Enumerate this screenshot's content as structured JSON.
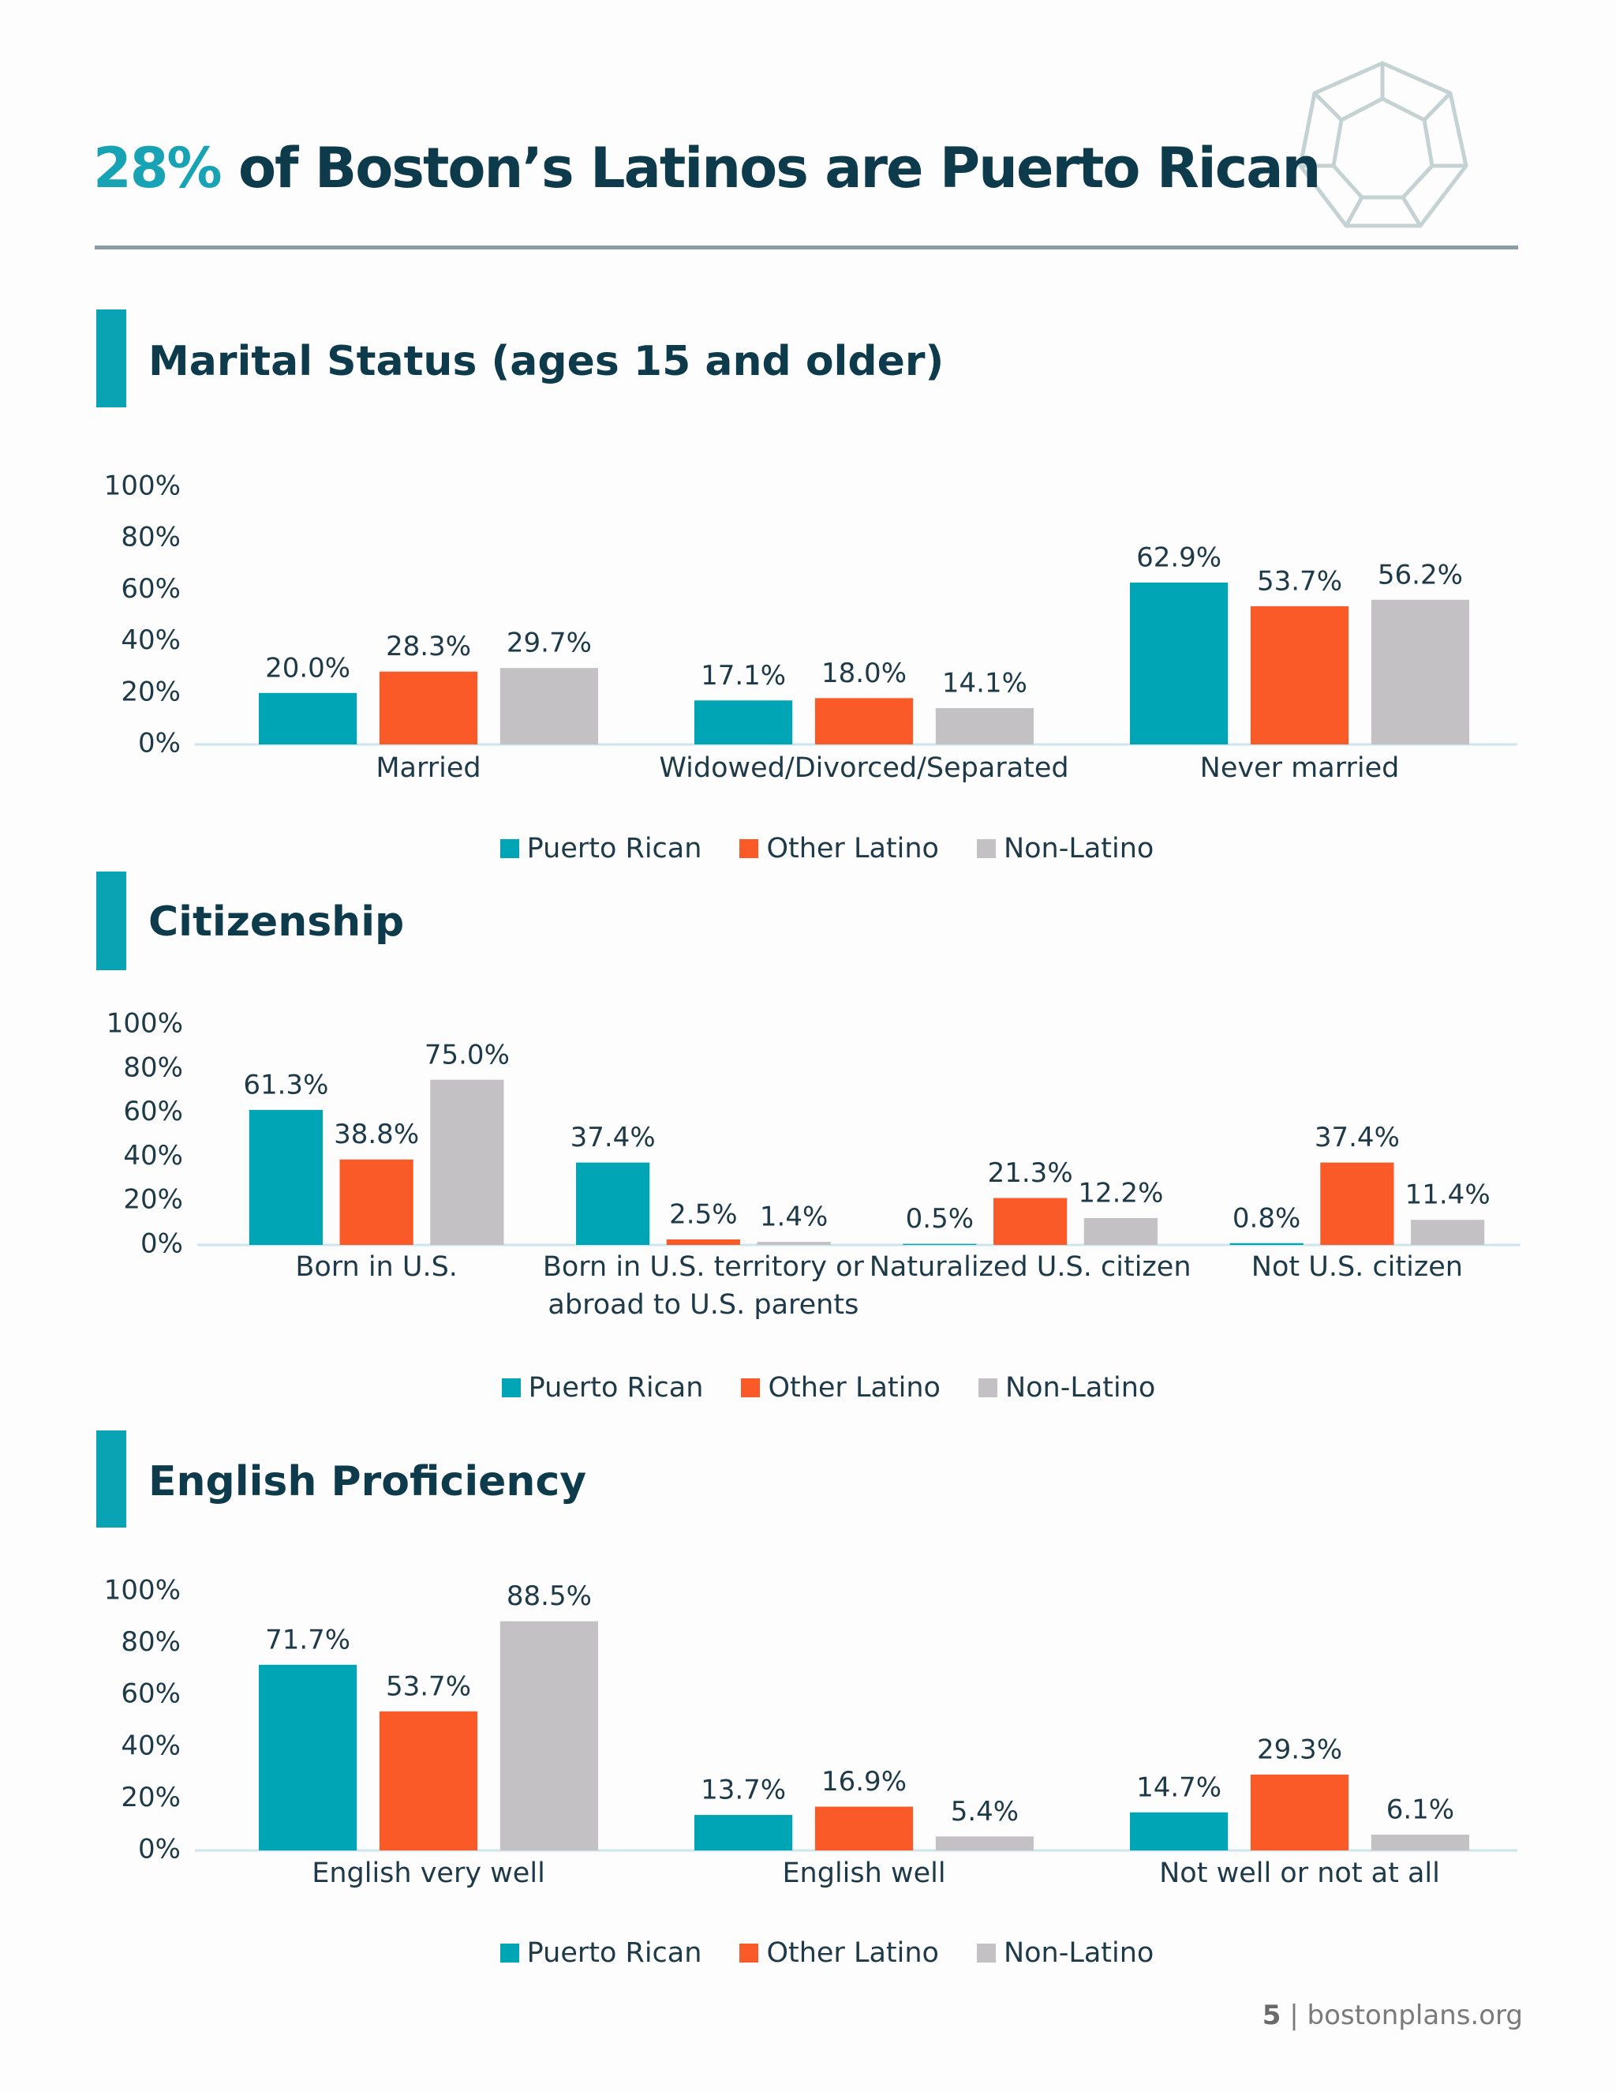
{
  "header": {
    "title_highlight": "28%",
    "title_rest": "of Boston’s Latinos are Puerto Rican"
  },
  "chart_data": [
    {
      "type": "bar",
      "title": "Marital Status (ages 15 and older)",
      "categories": [
        "Married",
        "Widowed/Divorced/Separated",
        "Never married"
      ],
      "series": [
        {
          "name": "Puerto Rican",
          "color": "#00a5b5",
          "values": [
            20.0,
            17.1,
            62.9
          ],
          "value_labels": [
            "20.0%",
            "17.1%",
            "62.9%"
          ]
        },
        {
          "name": "Other Latino",
          "color": "#fa5a28",
          "values": [
            28.3,
            18.0,
            53.7
          ],
          "value_labels": [
            "28.3%",
            "18.0%",
            "53.7%"
          ]
        },
        {
          "name": "Non-Latino",
          "color": "#c3c1c3",
          "values": [
            29.7,
            14.1,
            56.2
          ],
          "value_labels": [
            "29.7%",
            "14.1%",
            "56.2%"
          ]
        }
      ],
      "ylim": [
        0,
        100
      ],
      "yticks": [
        {
          "value": 0,
          "label": "0%"
        },
        {
          "value": 20,
          "label": "20%"
        },
        {
          "value": 40,
          "label": "40%"
        },
        {
          "value": 60,
          "label": "60%"
        },
        {
          "value": 80,
          "label": "80%"
        },
        {
          "value": 100,
          "label": "100%"
        }
      ],
      "legend": "bottom"
    },
    {
      "type": "bar",
      "title": "Citizenship",
      "categories": [
        "Born in U.S.",
        "Born in U.S. territory or abroad to U.S. parents",
        "Naturalized U.S. citizen",
        "Not U.S. citizen"
      ],
      "series": [
        {
          "name": "Puerto Rican",
          "color": "#00a5b5",
          "values": [
            61.3,
            37.4,
            0.5,
            0.8
          ],
          "value_labels": [
            "61.3%",
            "37.4%",
            "0.5%",
            "0.8%"
          ]
        },
        {
          "name": "Other Latino",
          "color": "#fa5a28",
          "values": [
            38.8,
            2.5,
            21.3,
            37.4
          ],
          "value_labels": [
            "38.8%",
            "2.5%",
            "21.3%",
            "37.4%"
          ]
        },
        {
          "name": "Non-Latino",
          "color": "#c3c1c3",
          "values": [
            75.0,
            1.4,
            12.2,
            11.4
          ],
          "value_labels": [
            "75.0%",
            "1.4%",
            "12.2%",
            "11.4%"
          ]
        }
      ],
      "ylim": [
        0,
        100
      ],
      "yticks": [
        {
          "value": 0,
          "label": "0%"
        },
        {
          "value": 20,
          "label": "20%"
        },
        {
          "value": 40,
          "label": "40%"
        },
        {
          "value": 60,
          "label": "60%"
        },
        {
          "value": 80,
          "label": "80%"
        },
        {
          "value": 100,
          "label": "100%"
        }
      ],
      "legend": "bottom"
    },
    {
      "type": "bar",
      "title": "English Proficiency",
      "categories": [
        "English very well",
        "English well",
        "Not well or not at all"
      ],
      "series": [
        {
          "name": "Puerto Rican",
          "color": "#00a5b5",
          "values": [
            71.7,
            13.7,
            14.7
          ],
          "value_labels": [
            "71.7%",
            "13.7%",
            "14.7%"
          ]
        },
        {
          "name": "Other Latino",
          "color": "#fa5a28",
          "values": [
            53.7,
            16.9,
            29.3
          ],
          "value_labels": [
            "53.7%",
            "16.9%",
            "29.3%"
          ]
        },
        {
          "name": "Non-Latino",
          "color": "#c3c1c3",
          "values": [
            88.5,
            5.4,
            6.1
          ],
          "value_labels": [
            "88.5%",
            "5.4%",
            "6.1%"
          ]
        }
      ],
      "ylim": [
        0,
        100
      ],
      "yticks": [
        {
          "value": 0,
          "label": "0%"
        },
        {
          "value": 20,
          "label": "20%"
        },
        {
          "value": 40,
          "label": "40%"
        },
        {
          "value": 60,
          "label": "60%"
        },
        {
          "value": 80,
          "label": "80%"
        },
        {
          "value": 100,
          "label": "100%"
        }
      ],
      "legend": "bottom"
    }
  ],
  "footer": {
    "page": "5",
    "separator": "|",
    "site": "bostonplans.org"
  }
}
